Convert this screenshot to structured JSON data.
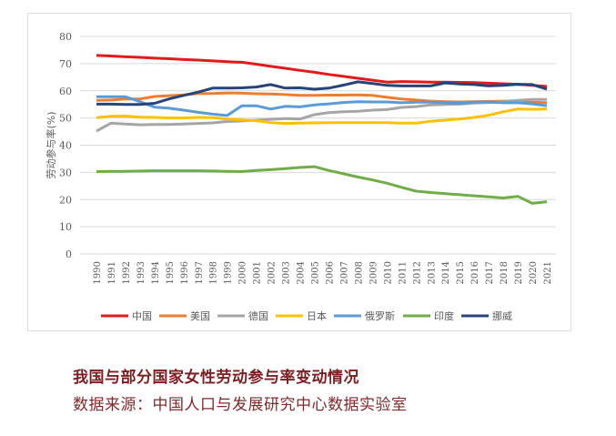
{
  "chart_data": {
    "type": "line",
    "title": "",
    "xlabel": "",
    "ylabel": "劳动参与率(%)",
    "ylim": [
      0,
      80
    ],
    "yticks": [
      0,
      10,
      20,
      30,
      40,
      50,
      60,
      70,
      80
    ],
    "grid": true,
    "legend_position": "bottom",
    "x": [
      1990,
      1991,
      1992,
      1993,
      1994,
      1995,
      1996,
      1997,
      1998,
      1999,
      2000,
      2001,
      2002,
      2003,
      2004,
      2005,
      2006,
      2007,
      2008,
      2009,
      2010,
      2011,
      2012,
      2013,
      2014,
      2015,
      2016,
      2017,
      2018,
      2019,
      2020,
      2021
    ],
    "series": [
      {
        "name": "中国",
        "color": "#e31a1c",
        "values": [
          73,
          72.8,
          72.5,
          72.3,
          72,
          71.8,
          71.5,
          71.3,
          71,
          70.7,
          70.5,
          69.8,
          69,
          68.3,
          67.5,
          66.8,
          66,
          65.3,
          64.6,
          63.9,
          63.2,
          63.4,
          63.3,
          63.2,
          63.2,
          63.1,
          63,
          62.8,
          62.6,
          62.4,
          62,
          61.6
        ]
      },
      {
        "name": "美国",
        "color": "#ed7d31",
        "values": [
          56.5,
          56.6,
          57,
          57,
          57.9,
          58.2,
          58.5,
          59,
          59,
          59.2,
          59.1,
          58.9,
          58.8,
          58.6,
          58.3,
          58.3,
          58.4,
          58.4,
          58.5,
          58.3,
          57.6,
          57,
          56.6,
          56.2,
          56,
          55.9,
          56,
          56.1,
          56.2,
          56.3,
          55.8,
          55.6
        ]
      },
      {
        "name": "德国",
        "color": "#a5a5a5",
        "values": [
          45.2,
          48.1,
          47.8,
          47.5,
          47.6,
          47.6,
          47.8,
          48,
          48.2,
          48.7,
          48.9,
          49.2,
          49.5,
          49.8,
          49.6,
          51.2,
          52,
          52.3,
          52.5,
          52.9,
          53.1,
          53.9,
          54.2,
          54.8,
          55,
          55.1,
          55.5,
          55.7,
          56,
          56.5,
          56.8,
          56.8
        ]
      },
      {
        "name": "日本",
        "color": "#ffc000",
        "values": [
          50.1,
          50.6,
          50.7,
          50.3,
          50.2,
          50,
          50,
          50.2,
          50.1,
          49.6,
          49.3,
          49,
          48.3,
          48,
          48.1,
          48.2,
          48.3,
          48.3,
          48.3,
          48.3,
          48.3,
          48.1,
          48.1,
          48.8,
          49.2,
          49.6,
          50.2,
          51,
          52.3,
          53.3,
          53.2,
          53.3
        ]
      },
      {
        "name": "俄罗斯",
        "color": "#5b9bd5",
        "values": [
          57.8,
          57.8,
          57.8,
          56,
          54,
          53.6,
          52.9,
          52.1,
          51.4,
          50.9,
          54.5,
          54.5,
          53.3,
          54.3,
          54.1,
          54.8,
          55.2,
          55.7,
          56,
          55.9,
          55.9,
          55.6,
          55.8,
          55.8,
          55.6,
          55.4,
          55.9,
          55.8,
          55.6,
          55.6,
          55.2,
          54.5
        ]
      },
      {
        "name": "印度",
        "color": "#70ad47",
        "values": [
          30.3,
          30.4,
          30.4,
          30.5,
          30.6,
          30.6,
          30.6,
          30.6,
          30.5,
          30.4,
          30.3,
          30.7,
          31,
          31.4,
          31.8,
          32.1,
          30.7,
          29.5,
          28.3,
          27.2,
          26,
          24.5,
          23.1,
          22.6,
          22.2,
          21.8,
          21.4,
          21,
          20.6,
          21.2,
          18.6,
          19.2
        ]
      },
      {
        "name": "挪威",
        "color": "#264478",
        "values": [
          55.1,
          55.1,
          55,
          55,
          55.4,
          57,
          58.3,
          59.5,
          61,
          61,
          61.1,
          61.4,
          62.3,
          61,
          61.1,
          60.6,
          61,
          62.1,
          63.3,
          62.7,
          62,
          61.8,
          61.8,
          61.8,
          62.9,
          62.5,
          62.3,
          61.8,
          62,
          62.4,
          62.3,
          60.6
        ]
      }
    ]
  },
  "caption": {
    "title": "我国与部分国家女性劳动参与率变动情况",
    "source": "数据来源：中国人口与发展研究中心数据实验室"
  }
}
